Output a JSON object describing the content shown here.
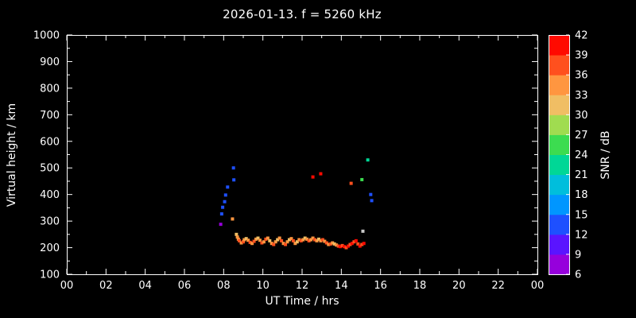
{
  "title": "2026-01-13. f = 5260 kHz",
  "colors": {
    "background": "#000000",
    "foreground": "#ffffff"
  },
  "axes": {
    "x_label": "UT Time / hrs",
    "y_label": "Virtual height / km",
    "x_tick_labels": [
      "00",
      "02",
      "04",
      "06",
      "08",
      "10",
      "12",
      "14",
      "16",
      "18",
      "20",
      "22",
      "00"
    ],
    "y_tick_labels": [
      "100",
      "200",
      "300",
      "400",
      "500",
      "600",
      "700",
      "800",
      "900",
      "1000"
    ]
  },
  "colorbar": {
    "label": "SNR / dB",
    "tick_labels": [
      "6",
      "9",
      "12",
      "15",
      "18",
      "21",
      "24",
      "27",
      "30",
      "33",
      "36",
      "39",
      "42"
    ],
    "band_colors": [
      "#9600DC",
      "#5A14FF",
      "#1E50FF",
      "#0096FF",
      "#00BEDC",
      "#00D796",
      "#3CDC50",
      "#A0DC50",
      "#F0BE64",
      "#FF9640",
      "#FF501E",
      "#FF0A00"
    ]
  },
  "chart_data": {
    "type": "scatter",
    "title": "2026-01-13. f = 5260 kHz",
    "xlabel": "UT Time / hrs",
    "ylabel": "Virtual height / km",
    "colorbar_label": "SNR / dB",
    "xlim": [
      0,
      24
    ],
    "ylim": [
      100,
      1000
    ],
    "snr_range": [
      6,
      42
    ],
    "grid": false,
    "points": [
      [
        7.85,
        288,
        7
      ],
      [
        7.9,
        327,
        13
      ],
      [
        7.95,
        352,
        13
      ],
      [
        8.05,
        373,
        14
      ],
      [
        8.1,
        398,
        13
      ],
      [
        8.2,
        428,
        14
      ],
      [
        8.5,
        500,
        13
      ],
      [
        8.52,
        455,
        13
      ],
      [
        8.45,
        308,
        34
      ],
      [
        8.65,
        250,
        31
      ],
      [
        8.7,
        240,
        34
      ],
      [
        8.75,
        232,
        34
      ],
      [
        8.8,
        226,
        37
      ],
      [
        8.9,
        218,
        34
      ],
      [
        9.0,
        222,
        37
      ],
      [
        9.05,
        230,
        34
      ],
      [
        9.15,
        234,
        31
      ],
      [
        9.25,
        228,
        34
      ],
      [
        9.35,
        220,
        37
      ],
      [
        9.45,
        216,
        34
      ],
      [
        9.55,
        224,
        37
      ],
      [
        9.65,
        232,
        34
      ],
      [
        9.75,
        236,
        31
      ],
      [
        9.85,
        228,
        34
      ],
      [
        9.95,
        218,
        37
      ],
      [
        10.05,
        222,
        34
      ],
      [
        10.15,
        232,
        37
      ],
      [
        10.25,
        236,
        34
      ],
      [
        10.35,
        226,
        31
      ],
      [
        10.45,
        216,
        34
      ],
      [
        10.55,
        212,
        37
      ],
      [
        10.65,
        222,
        34
      ],
      [
        10.75,
        230,
        31
      ],
      [
        10.85,
        236,
        34
      ],
      [
        10.95,
        226,
        37
      ],
      [
        11.05,
        216,
        34
      ],
      [
        11.15,
        212,
        37
      ],
      [
        11.25,
        222,
        34
      ],
      [
        11.35,
        230,
        31
      ],
      [
        11.45,
        234,
        34
      ],
      [
        11.55,
        226,
        37
      ],
      [
        11.65,
        216,
        34
      ],
      [
        11.75,
        222,
        31
      ],
      [
        11.85,
        230,
        34
      ],
      [
        11.95,
        226,
        37
      ],
      [
        12.05,
        230,
        34
      ],
      [
        12.15,
        236,
        31
      ],
      [
        12.25,
        232,
        34
      ],
      [
        12.35,
        226,
        37
      ],
      [
        12.45,
        230,
        34
      ],
      [
        12.55,
        236,
        34
      ],
      [
        12.65,
        230,
        37
      ],
      [
        12.75,
        226,
        34
      ],
      [
        12.85,
        232,
        31
      ],
      [
        12.95,
        226,
        34
      ],
      [
        13.05,
        230,
        37
      ],
      [
        13.15,
        224,
        34
      ],
      [
        13.25,
        218,
        37
      ],
      [
        13.35,
        212,
        34
      ],
      [
        13.45,
        214,
        37
      ],
      [
        13.55,
        218,
        34
      ],
      [
        13.65,
        214,
        31
      ],
      [
        13.75,
        210,
        34
      ],
      [
        13.85,
        206,
        37
      ],
      [
        13.95,
        204,
        40
      ],
      [
        14.05,
        208,
        37
      ],
      [
        14.15,
        204,
        40
      ],
      [
        14.25,
        200,
        37
      ],
      [
        14.35,
        206,
        40
      ],
      [
        14.45,
        212,
        37
      ],
      [
        14.55,
        216,
        40
      ],
      [
        14.65,
        222,
        37
      ],
      [
        14.75,
        226,
        40
      ],
      [
        14.85,
        214,
        37
      ],
      [
        14.95,
        206,
        40
      ],
      [
        15.05,
        212,
        37
      ],
      [
        15.15,
        216,
        40
      ],
      [
        12.55,
        466,
        40
      ],
      [
        12.95,
        478,
        40
      ],
      [
        14.5,
        442,
        37
      ],
      [
        15.35,
        530,
        23
      ],
      [
        15.05,
        456,
        26
      ],
      [
        15.5,
        400,
        13
      ],
      [
        15.55,
        377,
        13
      ],
      [
        15.1,
        262,
        null,
        "#C8C8C8"
      ]
    ]
  }
}
